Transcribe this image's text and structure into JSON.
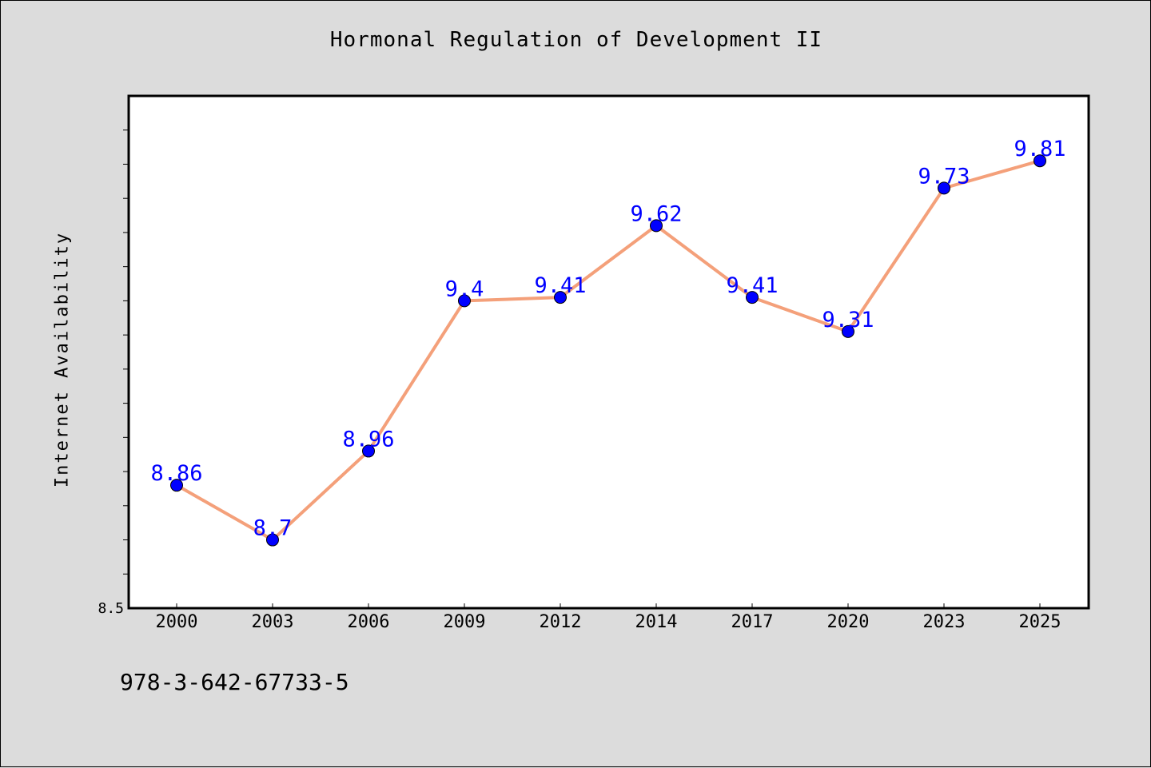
{
  "chart_data": {
    "type": "line",
    "title": "Hormonal Regulation of Development II",
    "ylabel": "Internet Availability",
    "xlabel": "",
    "categories": [
      "2000",
      "2003",
      "2006",
      "2009",
      "2012",
      "2014",
      "2017",
      "2020",
      "2023",
      "2025"
    ],
    "series": [
      {
        "values": [
          8.86,
          8.7,
          8.96,
          9.4,
          9.41,
          9.62,
          9.41,
          9.31,
          9.73,
          9.81
        ],
        "data_labels": [
          "8.86",
          "8.7",
          "8.96",
          "9.4",
          "9.41",
          "9.62",
          "9.41",
          "9.31",
          "9.73",
          "9.81"
        ],
        "line_color": "#f4a07a",
        "marker_color": "#0000ff"
      }
    ],
    "ylim": [
      8.5,
      10.0
    ],
    "ytick_labels": [
      "8.5"
    ],
    "grid": false,
    "legend": "none"
  },
  "footnote": "978-3-642-67733-5",
  "colors": {
    "background": "#dcdcdc",
    "plot_background": "#ffffff",
    "line": "#f4a07a",
    "marker": "#0000ff",
    "data_label": "#0000ff"
  }
}
